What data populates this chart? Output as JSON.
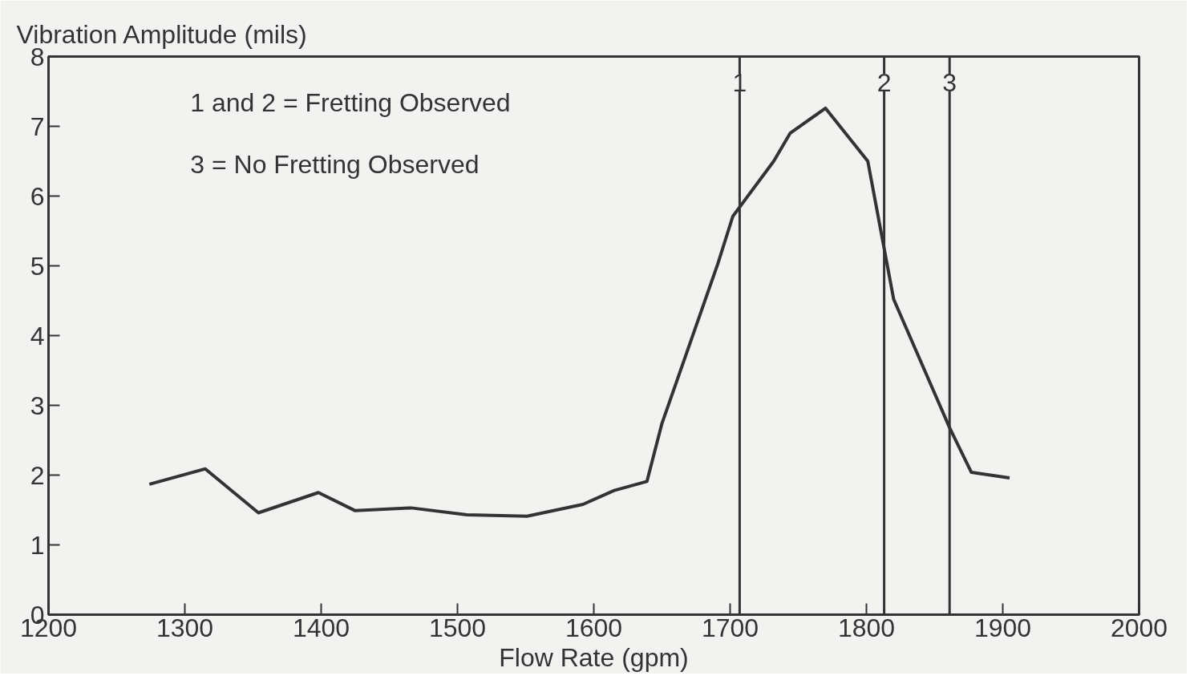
{
  "chart_data": {
    "type": "line",
    "ylabel": "Vibration Amplitude (mils)",
    "xlabel": "Flow Rate (gpm)",
    "x": [
      1274,
      1315,
      1354,
      1398,
      1425,
      1466,
      1507,
      1551,
      1592,
      1615,
      1639,
      1650,
      1691,
      1702,
      1732,
      1744,
      1770,
      1801,
      1820,
      1861,
      1877,
      1905
    ],
    "series": [
      {
        "color": "#333333",
        "values": [
          1.87,
          2.09,
          1.46,
          1.75,
          1.49,
          1.53,
          1.43,
          1.41,
          1.58,
          1.78,
          1.91,
          2.74,
          5.03,
          5.71,
          6.5,
          6.9,
          7.26,
          6.5,
          4.52,
          2.68,
          2.04,
          1.96
        ]
      }
    ],
    "xlim": [
      1200,
      2000
    ],
    "xticks": [
      1200,
      1300,
      1400,
      1500,
      1600,
      1700,
      1800,
      1900,
      2000
    ],
    "ylim": [
      0,
      8
    ],
    "yticks": [
      0,
      1,
      2,
      3,
      4,
      5,
      6,
      7,
      8
    ],
    "ref_lines": [
      {
        "axis": "x",
        "value": 1707
      },
      {
        "axis": "x",
        "value": 1813
      },
      {
        "axis": "x",
        "value": 1861
      }
    ],
    "annotations": [
      "1 and 2 = Fretting Observed",
      "3 = No Fretting Observed",
      {
        "text": "1",
        "x": 1707,
        "y": 7.5
      },
      {
        "text": "2",
        "x": 1813,
        "y": 7.5
      },
      {
        "text": "3",
        "x": 1861,
        "y": 7.5
      }
    ],
    "grid": false,
    "marker": "none",
    "line_style": "solid"
  }
}
